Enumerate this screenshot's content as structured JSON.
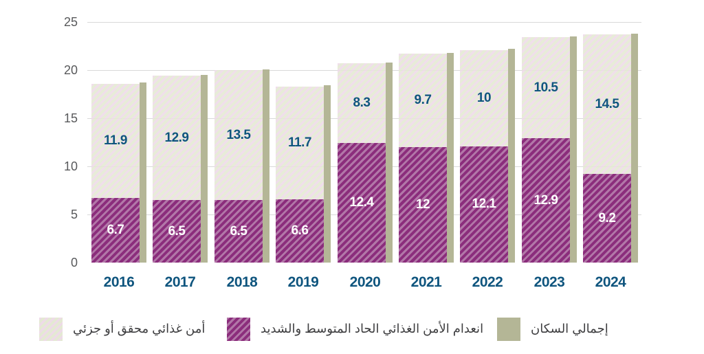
{
  "chart_data": {
    "type": "bar",
    "stacked": true,
    "title": "",
    "categories": [
      "2016",
      "2017",
      "2018",
      "2019",
      "2020",
      "2021",
      "2022",
      "2023",
      "2024"
    ],
    "series": [
      {
        "name": "انعدام الأمن الغذائي الحاد المتوسط والشديد",
        "role": "stack-bottom",
        "pattern": "diagonal-hatch",
        "color_dark": "#8b2d7c",
        "color_light": "#b277a8",
        "value_label_color": "#ffffff",
        "values": [
          6.7,
          6.5,
          6.5,
          6.6,
          12.4,
          12,
          12.1,
          12.9,
          9.2
        ]
      },
      {
        "name": "أمن غذائي محقق أو جزئي",
        "role": "stack-top",
        "pattern": "diagonal-hatch",
        "color_dark": "#e4e9d3",
        "color_light": "#eedae8",
        "value_label_color": "#0f557e",
        "values": [
          11.9,
          12.9,
          13.5,
          11.7,
          8.3,
          9.7,
          10,
          10.5,
          14.5
        ]
      },
      {
        "name": "إجمالي السكان",
        "role": "narrow-side-bar",
        "color": "#b4b696",
        "values_estimated_from_gridlines": true,
        "values": [
          18.7,
          19.5,
          20.1,
          18.4,
          20.8,
          21.8,
          22.2,
          23.5,
          23.8
        ]
      }
    ],
    "ylim": [
      0,
      25
    ],
    "yticks": [
      0,
      5,
      10,
      15,
      20,
      25
    ],
    "grid": "horizontal",
    "legend_position": "bottom"
  },
  "legend": {
    "items": [
      {
        "label": "أمن غذائي محقق أو جزئي",
        "swatch": "security-hatch"
      },
      {
        "label": "انعدام الأمن الغذائي الحاد المتوسط والشديد",
        "swatch": "insecurity-hatch"
      },
      {
        "label": "إجمالي السكان",
        "swatch": "population-solid"
      }
    ]
  },
  "colors": {
    "category_label": "#0f557e",
    "axis_label": "#58595b",
    "gridline": "#d9d9d9",
    "background": "#ffffff"
  }
}
